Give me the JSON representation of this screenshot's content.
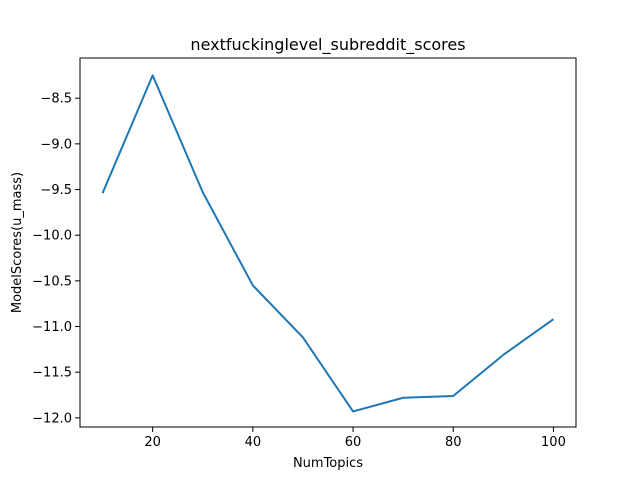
{
  "chart_data": {
    "type": "line",
    "title": "nextfuckinglevel_subreddit_scores",
    "xlabel": "NumTopics",
    "ylabel": "ModelScores(u_mass)",
    "x": [
      10,
      20,
      30,
      40,
      50,
      60,
      70,
      80,
      90,
      100
    ],
    "series": [
      {
        "values": [
          -9.54,
          -8.25,
          -9.53,
          -10.55,
          -11.12,
          -11.93,
          -11.78,
          -11.76,
          -11.31,
          -10.92
        ],
        "color": "#1f77b4"
      }
    ],
    "xlim": [
      5.5,
      104.5
    ],
    "ylim": [
      -12.1,
      -8.06
    ],
    "xticks": [
      20,
      40,
      60,
      80,
      100
    ],
    "xtick_labels": [
      "20",
      "40",
      "60",
      "80",
      "100"
    ],
    "yticks": [
      -8.5,
      -9.0,
      -9.5,
      -10.0,
      -10.5,
      -11.0,
      -11.5,
      -12.0
    ],
    "ytick_labels": [
      "−8.5",
      "−9.0",
      "−9.5",
      "−10.0",
      "−10.5",
      "−11.0",
      "−11.5",
      "−12.0"
    ],
    "grid": false,
    "legend": false
  }
}
